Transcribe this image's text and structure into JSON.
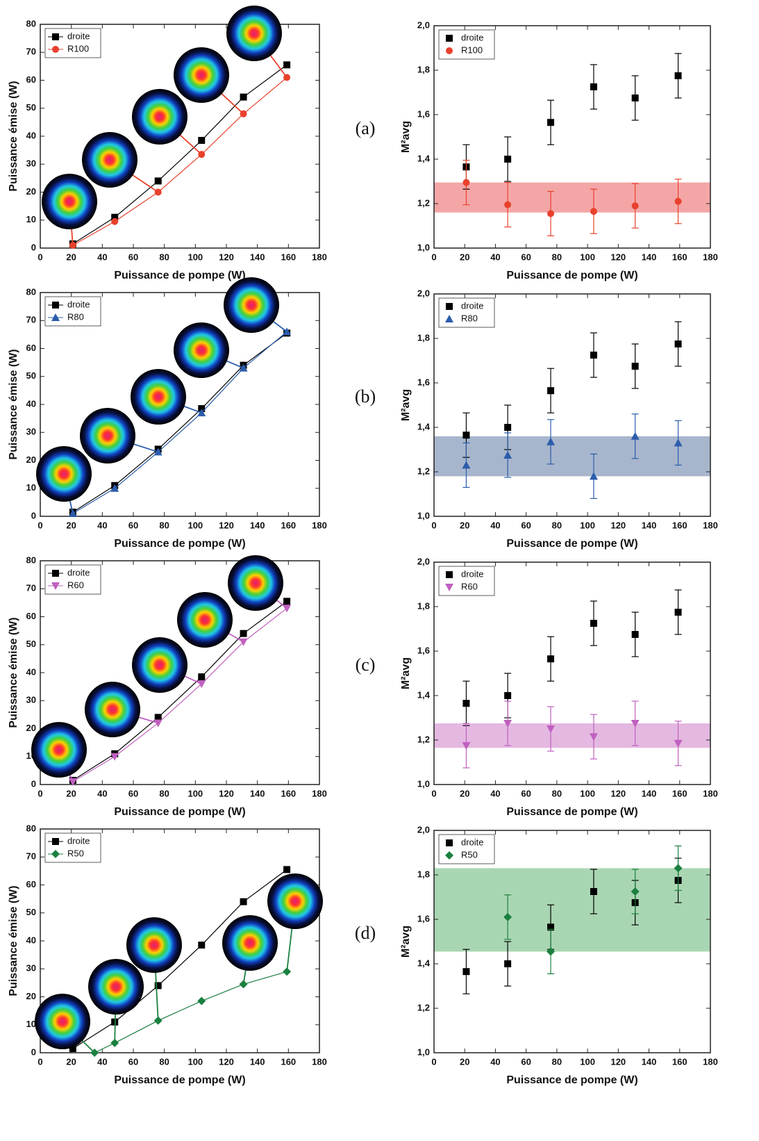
{
  "chart_data": [
    {
      "type": "line",
      "x_label": "Puissance de pompe (W)",
      "y_label": "Puissance émise (W)",
      "xlim": [
        0,
        180
      ],
      "ylim": [
        0,
        80
      ],
      "xticks": [
        0,
        20,
        40,
        60,
        80,
        100,
        120,
        140,
        160,
        180
      ],
      "yticks": [
        0,
        10,
        20,
        30,
        40,
        50,
        60,
        70,
        80
      ],
      "series": [
        {
          "name": "droite",
          "color": "#000000",
          "marker": "square",
          "x": [
            21,
            48,
            76,
            104,
            131,
            159
          ],
          "values": [
            1.5,
            11,
            24,
            38.5,
            54,
            65.5
          ]
        },
        {
          "name": "R100",
          "color": "#e8412c",
          "marker": "circle",
          "x": [
            21,
            48,
            76,
            104,
            131,
            159
          ],
          "values": [
            1,
            9.5,
            20,
            33.5,
            48,
            61
          ]
        }
      ]
    },
    {
      "type": "scatter",
      "panel_label": "(a)",
      "x_label": "Puissance de pompe (W)",
      "y_label": "M²avg",
      "xlim": [
        0,
        180
      ],
      "ylim": [
        1,
        2
      ],
      "xticks": [
        0,
        20,
        40,
        60,
        80,
        100,
        120,
        140,
        160,
        180
      ],
      "yticks": [
        {
          "value": 1,
          "label": "1,0"
        },
        {
          "value": 1.2,
          "label": "1,2"
        },
        {
          "value": 1.4,
          "label": "1,4"
        },
        {
          "value": 1.6,
          "label": "1,6"
        },
        {
          "value": 1.8,
          "label": "1,8"
        },
        {
          "value": 2,
          "label": "2,0"
        }
      ],
      "band": [
        1.16,
        1.295
      ],
      "band_color": "#f4a6a6",
      "series": [
        {
          "name": "droite",
          "color": "#000000",
          "marker": "square",
          "x": [
            21,
            48,
            76,
            104,
            131,
            159
          ],
          "values": [
            1.365,
            1.4,
            1.565,
            1.725,
            1.675,
            1.775
          ],
          "errors": [
            0.1,
            0.1,
            0.1,
            0.1,
            0.1,
            0.1
          ]
        },
        {
          "name": "R100",
          "color": "#e8412c",
          "marker": "circle",
          "x": [
            21,
            48,
            76,
            104,
            131,
            159
          ],
          "values": [
            1.295,
            1.195,
            1.155,
            1.165,
            1.19,
            1.21
          ],
          "errors": [
            0.1,
            0.1,
            0.1,
            0.1,
            0.1,
            0.1
          ]
        }
      ]
    },
    {
      "type": "line",
      "x_label": "Puissance de pompe (W)",
      "y_label": "Puissance émise (W)",
      "xlim": [
        0,
        180
      ],
      "ylim": [
        0,
        80
      ],
      "xticks": [
        0,
        20,
        40,
        60,
        80,
        100,
        120,
        140,
        160,
        180
      ],
      "yticks": [
        0,
        10,
        20,
        30,
        40,
        50,
        60,
        70,
        80
      ],
      "series": [
        {
          "name": "droite",
          "color": "#000000",
          "marker": "square",
          "x": [
            21,
            48,
            76,
            104,
            131,
            159
          ],
          "values": [
            1.5,
            11,
            24,
            38.5,
            54,
            65.5
          ]
        },
        {
          "name": "R80",
          "color": "#2b5cab",
          "marker": "triangle-up",
          "x": [
            21,
            48,
            76,
            104,
            131,
            159
          ],
          "values": [
            1,
            10,
            23,
            37,
            53,
            66
          ]
        }
      ]
    },
    {
      "type": "scatter",
      "panel_label": "(b)",
      "x_label": "Puissance de pompe (W)",
      "y_label": "M²avg",
      "xlim": [
        0,
        180
      ],
      "ylim": [
        1,
        2
      ],
      "xticks": [
        0,
        20,
        40,
        60,
        80,
        100,
        120,
        140,
        160,
        180
      ],
      "yticks": [
        {
          "value": 1,
          "label": "1,0"
        },
        {
          "value": 1.2,
          "label": "1,2"
        },
        {
          "value": 1.4,
          "label": "1,4"
        },
        {
          "value": 1.6,
          "label": "1,6"
        },
        {
          "value": 1.8,
          "label": "1,8"
        },
        {
          "value": 2,
          "label": "2,0"
        }
      ],
      "band": [
        1.18,
        1.36
      ],
      "band_color": "#a7b6cc",
      "series": [
        {
          "name": "droite",
          "color": "#000000",
          "marker": "square",
          "x": [
            21,
            48,
            76,
            104,
            131,
            159
          ],
          "values": [
            1.365,
            1.4,
            1.565,
            1.725,
            1.675,
            1.775
          ],
          "errors": [
            0.1,
            0.1,
            0.1,
            0.1,
            0.1,
            0.1
          ]
        },
        {
          "name": "R80",
          "color": "#2b5cab",
          "marker": "triangle-up",
          "x": [
            21,
            48,
            76,
            104,
            131,
            159
          ],
          "values": [
            1.23,
            1.275,
            1.335,
            1.18,
            1.36,
            1.33
          ],
          "errors": [
            0.1,
            0.1,
            0.1,
            0.1,
            0.1,
            0.1
          ]
        }
      ]
    },
    {
      "type": "line",
      "x_label": "Puissance de pompe (W)",
      "y_label": "Puissance émise (W)",
      "xlim": [
        0,
        180
      ],
      "ylim": [
        0,
        80
      ],
      "xticks": [
        0,
        20,
        40,
        60,
        80,
        100,
        120,
        140,
        160,
        180
      ],
      "yticks": [
        0,
        10,
        20,
        30,
        40,
        50,
        60,
        70,
        80
      ],
      "series": [
        {
          "name": "droite",
          "color": "#000000",
          "marker": "square",
          "x": [
            21,
            48,
            76,
            104,
            131,
            159
          ],
          "values": [
            1.5,
            11,
            24,
            38.5,
            54,
            65.5
          ]
        },
        {
          "name": "R60",
          "color": "#c060c0",
          "marker": "triangle-down",
          "x": [
            21,
            48,
            76,
            104,
            131,
            159
          ],
          "values": [
            1,
            10,
            22,
            36,
            51,
            63
          ]
        }
      ]
    },
    {
      "type": "scatter",
      "panel_label": "(c)",
      "x_label": "Puissance de pompe (W)",
      "y_label": "M²avg",
      "xlim": [
        0,
        180
      ],
      "ylim": [
        1,
        2
      ],
      "xticks": [
        0,
        20,
        40,
        60,
        80,
        100,
        120,
        140,
        160,
        180
      ],
      "yticks": [
        {
          "value": 1,
          "label": "1,0"
        },
        {
          "value": 1.2,
          "label": "1,2"
        },
        {
          "value": 1.4,
          "label": "1,4"
        },
        {
          "value": 1.6,
          "label": "1,6"
        },
        {
          "value": 1.8,
          "label": "1,8"
        },
        {
          "value": 2,
          "label": "2,0"
        }
      ],
      "band": [
        1.165,
        1.275
      ],
      "band_color": "#e4b8e0",
      "series": [
        {
          "name": "droite",
          "color": "#000000",
          "marker": "square",
          "x": [
            21,
            48,
            76,
            104,
            131,
            159
          ],
          "values": [
            1.365,
            1.4,
            1.565,
            1.725,
            1.675,
            1.775
          ],
          "errors": [
            0.1,
            0.1,
            0.1,
            0.1,
            0.1,
            0.1
          ]
        },
        {
          "name": "R60",
          "color": "#c060c0",
          "marker": "triangle-down",
          "x": [
            21,
            48,
            76,
            104,
            131,
            159
          ],
          "values": [
            1.175,
            1.275,
            1.25,
            1.215,
            1.275,
            1.185
          ],
          "errors": [
            0.1,
            0.1,
            0.1,
            0.1,
            0.1,
            0.1
          ]
        }
      ]
    },
    {
      "type": "line",
      "x_label": "Puissance de pompe (W)",
      "y_label": "Puissance émise (W)",
      "xlim": [
        0,
        180
      ],
      "ylim": [
        0,
        80
      ],
      "xticks": [
        0,
        20,
        40,
        60,
        80,
        100,
        120,
        140,
        160,
        180
      ],
      "yticks": [
        0,
        10,
        20,
        30,
        40,
        50,
        60,
        70,
        80
      ],
      "series": [
        {
          "name": "droite",
          "color": "#000000",
          "marker": "square",
          "x": [
            21,
            48,
            76,
            104,
            131,
            159
          ],
          "values": [
            1.5,
            11,
            24,
            38.5,
            54,
            65.5
          ]
        },
        {
          "name": "R50",
          "color": "#1a8040",
          "marker": "diamond",
          "x": [
            35,
            48,
            76,
            104,
            131,
            159
          ],
          "values": [
            0,
            3.5,
            11.5,
            18.5,
            24.5,
            29
          ]
        }
      ]
    },
    {
      "type": "scatter",
      "panel_label": "(d)",
      "x_label": "Puissance de pompe (W)",
      "y_label": "M²avg",
      "xlim": [
        0,
        180
      ],
      "ylim": [
        1,
        2
      ],
      "xticks": [
        0,
        20,
        40,
        60,
        80,
        100,
        120,
        140,
        160,
        180
      ],
      "yticks": [
        {
          "value": 1,
          "label": "1,0"
        },
        {
          "value": 1.2,
          "label": "1,2"
        },
        {
          "value": 1.4,
          "label": "1,4"
        },
        {
          "value": 1.6,
          "label": "1,6"
        },
        {
          "value": 1.8,
          "label": "1,8"
        },
        {
          "value": 2,
          "label": "2,0"
        }
      ],
      "band": [
        1.455,
        1.83
      ],
      "band_color": "#a9d6b2",
      "series": [
        {
          "name": "droite",
          "color": "#000000",
          "marker": "square",
          "x": [
            21,
            48,
            76,
            104,
            131,
            159
          ],
          "values": [
            1.365,
            1.4,
            1.565,
            1.725,
            1.675,
            1.775
          ],
          "errors": [
            0.1,
            0.1,
            0.1,
            0.1,
            0.1,
            0.1
          ]
        },
        {
          "name": "R50",
          "color": "#1a8040",
          "marker": "diamond",
          "x": [
            48,
            76,
            131,
            159
          ],
          "values": [
            1.61,
            1.455,
            1.725,
            1.83
          ],
          "errors": [
            0.1,
            0.1,
            0.1,
            0.1
          ]
        }
      ]
    }
  ]
}
